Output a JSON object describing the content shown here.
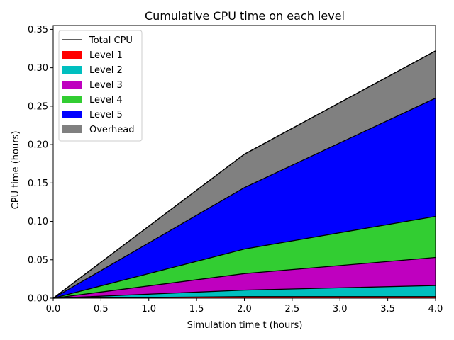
{
  "chart_data": {
    "type": "area",
    "title": "Cumulative CPU time on each level",
    "xlabel": "Simulation time t (hours)",
    "ylabel": "CPU time (hours)",
    "xlim": [
      0.0,
      4.0
    ],
    "ylim": [
      0.0,
      0.355
    ],
    "x_ticks": [
      "0.0",
      "0.5",
      "1.0",
      "1.5",
      "2.0",
      "2.5",
      "3.0",
      "3.5",
      "4.0"
    ],
    "y_ticks": [
      "0.00",
      "0.05",
      "0.10",
      "0.15",
      "0.20",
      "0.25",
      "0.30",
      "0.35"
    ],
    "x": [
      0.0,
      2.0,
      4.0
    ],
    "stacked": true,
    "series": [
      {
        "name": "Level 1",
        "color": "#ff0000",
        "values": [
          0.0,
          0.002,
          0.002
        ]
      },
      {
        "name": "Level 2",
        "color": "#00bfbf",
        "values": [
          0.0,
          0.0085,
          0.0145
        ]
      },
      {
        "name": "Level 3",
        "color": "#bf00bf",
        "values": [
          0.0,
          0.0215,
          0.0365
        ]
      },
      {
        "name": "Level 4",
        "color": "#32cd32",
        "values": [
          0.0,
          0.032,
          0.0535
        ]
      },
      {
        "name": "Level 5",
        "color": "#0000ff",
        "values": [
          0.0,
          0.08,
          0.154
        ]
      },
      {
        "name": "Overhead",
        "color": "#808080",
        "values": [
          0.0,
          0.0435,
          0.0615
        ]
      }
    ],
    "total": {
      "name": "Total CPU",
      "color": "#000000",
      "values": [
        0.0,
        0.1875,
        0.322
      ]
    },
    "legend_position": "top-left",
    "grid": false
  }
}
